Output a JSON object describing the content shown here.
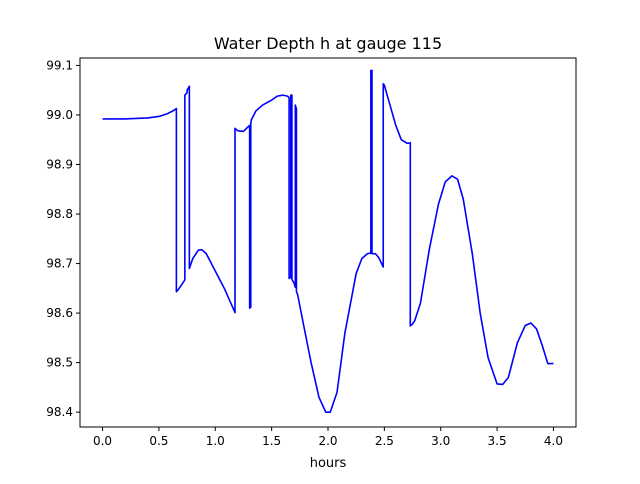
{
  "chart_data": {
    "type": "line",
    "title": "Water Depth h at gauge 115",
    "xlabel": "hours",
    "ylabel": "",
    "xlim": [
      -0.2,
      4.2
    ],
    "ylim": [
      98.37,
      99.115
    ],
    "xticks": [
      0.0,
      0.5,
      1.0,
      1.5,
      2.0,
      2.5,
      3.0,
      3.5,
      4.0
    ],
    "xtick_labels": [
      "0.0",
      "0.5",
      "1.0",
      "1.5",
      "2.0",
      "2.5",
      "3.0",
      "3.5",
      "4.0"
    ],
    "yticks": [
      98.4,
      98.5,
      98.6,
      98.7,
      98.8,
      98.9,
      99.0,
      99.1
    ],
    "ytick_labels": [
      "98.4",
      "98.5",
      "98.6",
      "98.7",
      "98.8",
      "98.9",
      "99.0",
      "99.1"
    ],
    "grid": false,
    "colors": {
      "series": "#0000ff",
      "axes": "#000000",
      "background": "#ffffff"
    },
    "series": [
      {
        "x": [
          0.0,
          0.2,
          0.4,
          0.5,
          0.58,
          0.63,
          0.655,
          0.655,
          0.68,
          0.73,
          0.73,
          0.75,
          0.75,
          0.77,
          0.77,
          0.8,
          0.85,
          0.88,
          0.92,
          1.0,
          1.08,
          1.175,
          1.175,
          1.2,
          1.25,
          1.3,
          1.305,
          1.305,
          1.315,
          1.315,
          1.32,
          1.36,
          1.42,
          1.5,
          1.55,
          1.6,
          1.64,
          1.655,
          1.655,
          1.67,
          1.67,
          1.68,
          1.68,
          1.7,
          1.71,
          1.71,
          1.72,
          1.72,
          1.73,
          1.78,
          1.85,
          1.92,
          1.98,
          2.02,
          2.08,
          2.15,
          2.25,
          2.3,
          2.35,
          2.38,
          2.38,
          2.39,
          2.39,
          2.42,
          2.45,
          2.49,
          2.49,
          2.5,
          2.55,
          2.6,
          2.65,
          2.7,
          2.72,
          2.72,
          2.73,
          2.73,
          2.75,
          2.77,
          2.82,
          2.9,
          2.98,
          3.04,
          3.1,
          3.15,
          3.2,
          3.28,
          3.35,
          3.42,
          3.5,
          3.55,
          3.6,
          3.68,
          3.75,
          3.8,
          3.85,
          3.9,
          3.95,
          4.0
        ],
        "y": [
          98.992,
          98.992,
          98.994,
          98.997,
          99.003,
          99.009,
          99.013,
          98.643,
          98.65,
          98.667,
          99.04,
          99.045,
          99.05,
          99.058,
          98.69,
          98.71,
          98.727,
          98.728,
          98.72,
          98.685,
          98.65,
          98.601,
          98.973,
          98.968,
          98.967,
          98.978,
          98.979,
          98.61,
          98.612,
          98.982,
          98.99,
          99.008,
          99.02,
          99.03,
          99.038,
          99.04,
          99.038,
          99.035,
          98.67,
          98.672,
          99.04,
          99.04,
          98.668,
          98.66,
          98.652,
          99.02,
          99.012,
          98.643,
          98.638,
          98.58,
          98.5,
          98.43,
          98.4,
          98.4,
          98.44,
          98.56,
          98.68,
          98.71,
          98.72,
          98.721,
          99.09,
          99.09,
          98.72,
          98.72,
          98.712,
          98.693,
          99.063,
          99.06,
          99.02,
          98.98,
          98.95,
          98.943,
          98.943,
          98.943,
          98.944,
          98.574,
          98.578,
          98.585,
          98.62,
          98.73,
          98.82,
          98.865,
          98.877,
          98.87,
          98.83,
          98.72,
          98.6,
          98.51,
          98.457,
          98.456,
          98.47,
          98.54,
          98.575,
          98.58,
          98.568,
          98.535,
          98.498,
          98.498
        ]
      }
    ]
  }
}
